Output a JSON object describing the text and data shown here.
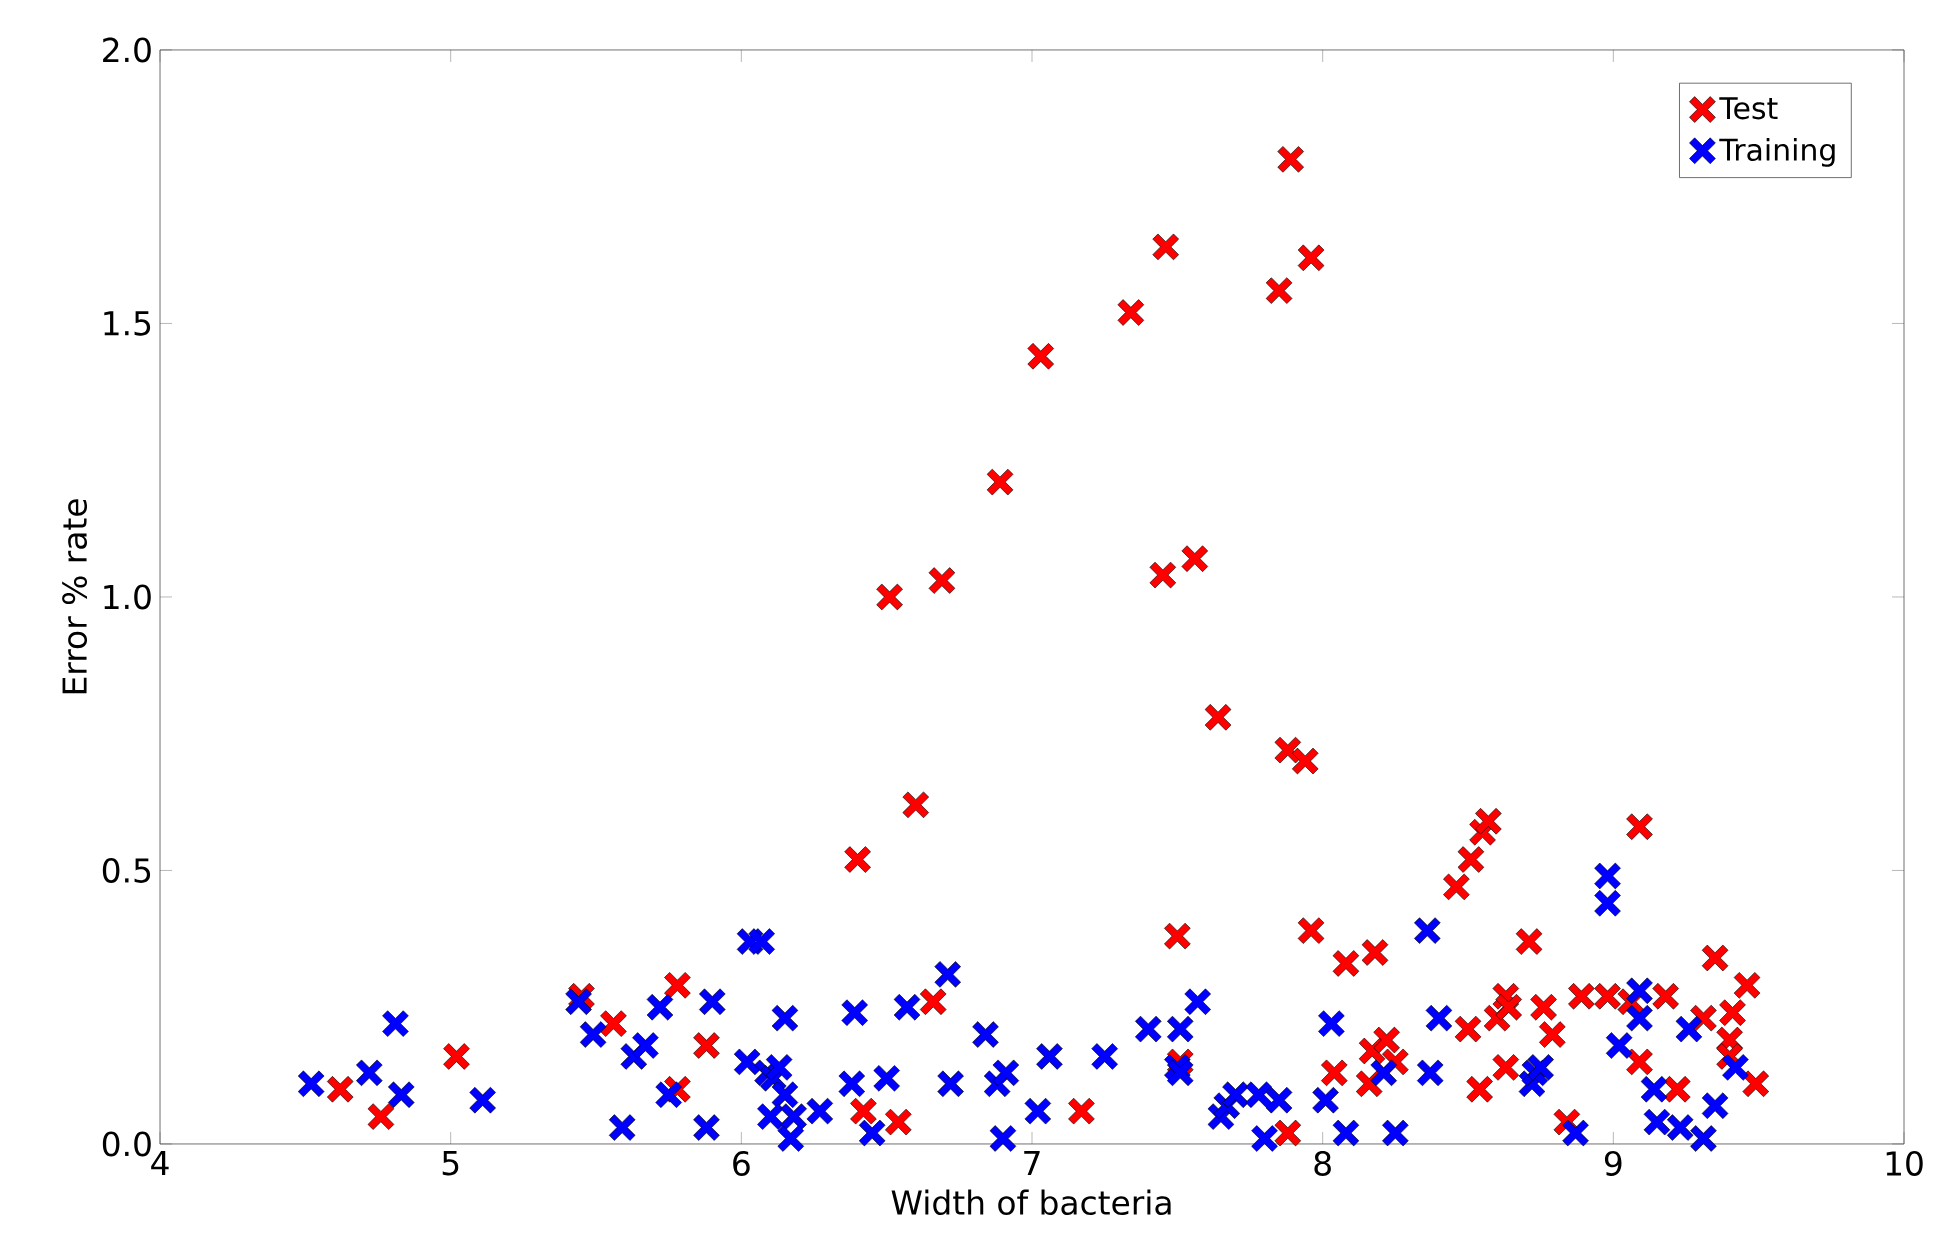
{
  "chart_data": {
    "type": "scatter",
    "xlabel": "Width of bacteria",
    "ylabel": "Error % rate",
    "xlim": [
      4,
      10
    ],
    "ylim": [
      0,
      2.0
    ],
    "xticks": [
      4,
      5,
      6,
      7,
      8,
      9,
      10
    ],
    "yticks": [
      {
        "value": 0,
        "label": "0.0"
      },
      {
        "value": 0.5,
        "label": "0.5"
      },
      {
        "value": 1.0,
        "label": "1.0"
      },
      {
        "value": 1.5,
        "label": "1.5"
      },
      {
        "value": 2.0,
        "label": "2.0"
      }
    ],
    "legend": "top right",
    "marker": "cross",
    "series": [
      {
        "name": "Test",
        "color": "#ff0000",
        "x": [
          4.62,
          4.76,
          5.02,
          5.45,
          5.56,
          5.78,
          5.78,
          5.88,
          6.4,
          6.42,
          6.51,
          6.54,
          6.6,
          6.66,
          6.69,
          6.89,
          7.03,
          7.17,
          7.34,
          7.46,
          7.45,
          7.5,
          7.51,
          7.56,
          7.64,
          7.85,
          7.89,
          7.88,
          7.94,
          7.96,
          7.96,
          7.88,
          8.04,
          8.08,
          8.18,
          8.17,
          8.16,
          8.22,
          8.25,
          8.46,
          8.5,
          8.51,
          8.54,
          8.55,
          8.57,
          8.6,
          8.63,
          8.64,
          8.63,
          8.71,
          8.76,
          8.79,
          8.84,
          8.89,
          8.98,
          9.06,
          9.09,
          9.09,
          9.18,
          9.22,
          9.31,
          9.35,
          9.4,
          9.4,
          9.41,
          9.46,
          9.49
        ],
        "values": [
          0.1,
          0.05,
          0.16,
          0.27,
          0.22,
          0.29,
          0.1,
          0.18,
          0.52,
          0.06,
          1.0,
          0.04,
          0.62,
          0.26,
          1.03,
          1.21,
          1.44,
          0.06,
          1.52,
          1.64,
          1.04,
          0.38,
          0.15,
          1.07,
          0.78,
          1.56,
          1.8,
          0.72,
          0.7,
          1.62,
          0.39,
          0.02,
          0.13,
          0.33,
          0.35,
          0.17,
          0.11,
          0.19,
          0.15,
          0.47,
          0.21,
          0.52,
          0.1,
          0.57,
          0.59,
          0.23,
          0.27,
          0.25,
          0.14,
          0.37,
          0.25,
          0.2,
          0.04,
          0.27,
          0.27,
          0.26,
          0.15,
          0.58,
          0.27,
          0.1,
          0.23,
          0.34,
          0.19,
          0.16,
          0.24,
          0.29,
          0.11
        ]
      },
      {
        "name": "Training",
        "color": "#0000ff",
        "x": [
          4.52,
          4.72,
          4.81,
          4.83,
          5.11,
          5.44,
          5.49,
          5.59,
          5.63,
          5.67,
          5.72,
          5.75,
          5.9,
          5.88,
          6.02,
          6.03,
          6.07,
          6.09,
          6.11,
          6.13,
          6.15,
          6.15,
          6.1,
          6.18,
          6.17,
          6.27,
          6.38,
          6.39,
          6.45,
          6.5,
          6.57,
          6.71,
          6.72,
          6.84,
          6.88,
          6.91,
          6.9,
          7.02,
          7.06,
          7.25,
          7.4,
          7.5,
          7.51,
          7.51,
          7.57,
          7.65,
          7.67,
          7.7,
          7.78,
          7.8,
          7.85,
          8.01,
          8.03,
          8.08,
          8.21,
          8.25,
          8.36,
          8.37,
          8.4,
          8.72,
          8.73,
          8.75,
          8.87,
          8.98,
          8.98,
          9.02,
          9.09,
          9.09,
          9.14,
          9.15,
          9.23,
          9.26,
          9.31,
          9.35,
          9.42
        ],
        "values": [
          0.11,
          0.13,
          0.22,
          0.09,
          0.08,
          0.26,
          0.2,
          0.03,
          0.16,
          0.18,
          0.25,
          0.09,
          0.26,
          0.03,
          0.15,
          0.37,
          0.37,
          0.13,
          0.12,
          0.14,
          0.09,
          0.23,
          0.05,
          0.05,
          0.01,
          0.06,
          0.11,
          0.24,
          0.02,
          0.12,
          0.25,
          0.31,
          0.11,
          0.2,
          0.11,
          0.13,
          0.01,
          0.06,
          0.16,
          0.16,
          0.21,
          0.14,
          0.21,
          0.13,
          0.26,
          0.05,
          0.07,
          0.09,
          0.09,
          0.01,
          0.08,
          0.08,
          0.22,
          0.02,
          0.13,
          0.02,
          0.39,
          0.13,
          0.23,
          0.11,
          0.13,
          0.14,
          0.02,
          0.49,
          0.44,
          0.18,
          0.28,
          0.23,
          0.1,
          0.04,
          0.03,
          0.21,
          0.01,
          0.07,
          0.14
        ]
      }
    ]
  }
}
